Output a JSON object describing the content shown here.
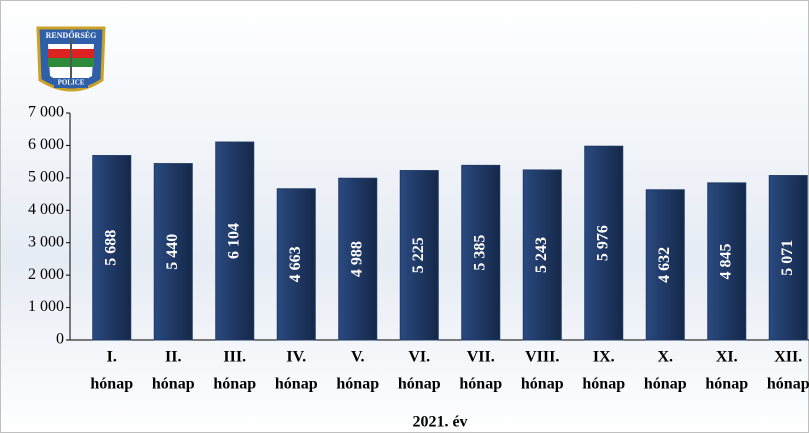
{
  "logo": {
    "top": "RENDŐRSÉG",
    "bottom": "POLICE"
  },
  "chart_data": {
    "type": "bar",
    "x_label": "2021. év",
    "categories": [
      [
        "I.",
        "hónap"
      ],
      [
        "II.",
        "hónap"
      ],
      [
        "III.",
        "hónap"
      ],
      [
        "IV.",
        "hónap"
      ],
      [
        "V.",
        "hónap"
      ],
      [
        "VI.",
        "hónap"
      ],
      [
        "VII.",
        "hónap"
      ],
      [
        "VIII.",
        "hónap"
      ],
      [
        "IX.",
        "hónap"
      ],
      [
        "X.",
        "hónap"
      ],
      [
        "XI.",
        "hónap"
      ],
      [
        "XII.",
        "hónap"
      ]
    ],
    "values": [
      5688,
      5440,
      6104,
      4663,
      4988,
      5225,
      5385,
      5243,
      5976,
      4632,
      4845,
      5071
    ],
    "value_labels": [
      "5 688",
      "5 440",
      "6 104",
      "4 663",
      "4 988",
      "5 225",
      "5 385",
      "5 243",
      "5 976",
      "4 632",
      "4 845",
      "5 071"
    ],
    "color": "#1f3864",
    "ylim": [
      0,
      7000
    ],
    "yticks": [
      0,
      {
        "value": 1000,
        "label": "1 000"
      },
      {
        "value": 2000,
        "label": "2 000"
      },
      {
        "value": 3000,
        "label": "3 000"
      },
      {
        "value": 4000,
        "label": "4 000"
      },
      {
        "value": 5000,
        "label": "5 000"
      },
      {
        "value": 6000,
        "label": "6 000"
      },
      {
        "value": 7000,
        "label": "7 000"
      }
    ]
  }
}
